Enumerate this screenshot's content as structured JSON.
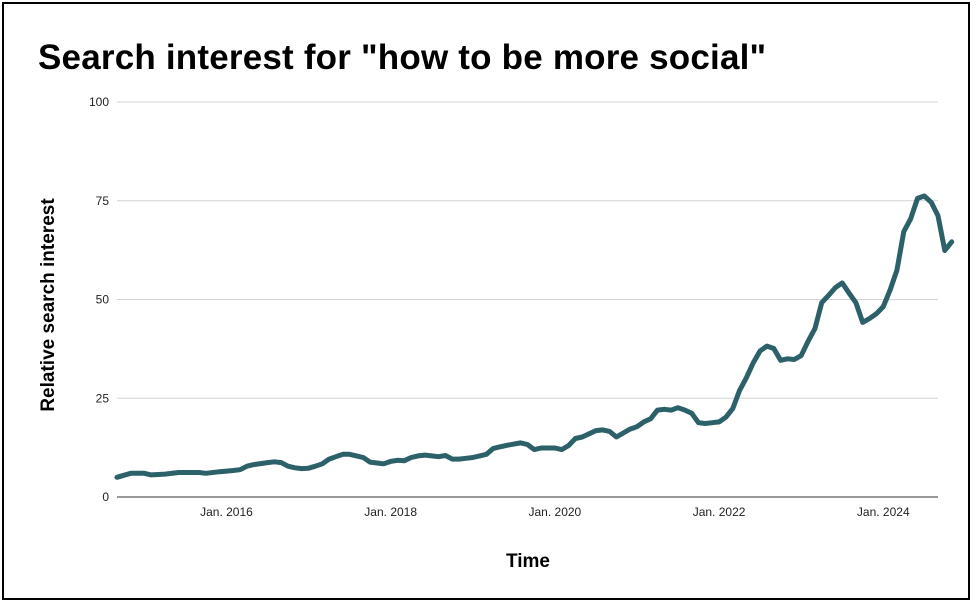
{
  "chart_data": {
    "type": "line",
    "title": "Search interest for \"how to be more social\"",
    "xlabel": "Time",
    "ylabel": "Relative search interest",
    "ylim": [
      0,
      100
    ],
    "yticks": [
      0,
      25,
      50,
      75,
      100
    ],
    "ytick_labels": [
      "0",
      "25",
      "50",
      "75",
      "100"
    ],
    "xlim": [
      "2014-09",
      "2024-09"
    ],
    "xticks": [
      {
        "date": "2016-01",
        "label": "Jan. 2016"
      },
      {
        "date": "2018-01",
        "label": "Jan. 2018"
      },
      {
        "date": "2020-01",
        "label": "Jan. 2020"
      },
      {
        "date": "2022-01",
        "label": "Jan. 2022"
      },
      {
        "date": "2024-01",
        "label": "Jan. 2024"
      }
    ],
    "grid": true,
    "line_color": "#2c6169",
    "grid_color": "#d3d3d3",
    "series": [
      {
        "points": [
          [
            "2014-09",
            5.0
          ],
          [
            "2014-10",
            5.5
          ],
          [
            "2014-11",
            6.0
          ],
          [
            "2015-01",
            6.0
          ],
          [
            "2015-02",
            5.6
          ],
          [
            "2015-04",
            5.8
          ],
          [
            "2015-06",
            6.2
          ],
          [
            "2015-09",
            6.2
          ],
          [
            "2015-10",
            6.0
          ],
          [
            "2015-12",
            6.4
          ],
          [
            "2016-02",
            6.7
          ],
          [
            "2016-03",
            6.9
          ],
          [
            "2016-04",
            7.8
          ],
          [
            "2016-05",
            8.2
          ],
          [
            "2016-07",
            8.7
          ],
          [
            "2016-08",
            8.9
          ],
          [
            "2016-09",
            8.7
          ],
          [
            "2016-10",
            7.8
          ],
          [
            "2016-11",
            7.4
          ],
          [
            "2016-12",
            7.2
          ],
          [
            "2017-01",
            7.3
          ],
          [
            "2017-02",
            7.8
          ],
          [
            "2017-03",
            8.4
          ],
          [
            "2017-04",
            9.6
          ],
          [
            "2017-05",
            10.2
          ],
          [
            "2017-06",
            10.8
          ],
          [
            "2017-07",
            10.8
          ],
          [
            "2017-08",
            10.4
          ],
          [
            "2017-09",
            10.0
          ],
          [
            "2017-10",
            8.8
          ],
          [
            "2017-11",
            8.6
          ],
          [
            "2017-12",
            8.4
          ],
          [
            "2018-01",
            9.0
          ],
          [
            "2018-02",
            9.3
          ],
          [
            "2018-03",
            9.2
          ],
          [
            "2018-04",
            10.0
          ],
          [
            "2018-05",
            10.4
          ],
          [
            "2018-06",
            10.6
          ],
          [
            "2018-07",
            10.4
          ],
          [
            "2018-08",
            10.2
          ],
          [
            "2018-09",
            10.5
          ],
          [
            "2018-10",
            9.6
          ],
          [
            "2018-11",
            9.6
          ],
          [
            "2018-12",
            9.8
          ],
          [
            "2019-01",
            10.0
          ],
          [
            "2019-02",
            10.4
          ],
          [
            "2019-03",
            10.8
          ],
          [
            "2019-04",
            12.3
          ],
          [
            "2019-05",
            12.7
          ],
          [
            "2019-06",
            13.1
          ],
          [
            "2019-07",
            13.4
          ],
          [
            "2019-08",
            13.7
          ],
          [
            "2019-09",
            13.3
          ],
          [
            "2019-10",
            12.0
          ],
          [
            "2019-11",
            12.4
          ],
          [
            "2019-12",
            12.4
          ],
          [
            "2020-01",
            12.4
          ],
          [
            "2020-02",
            12.0
          ],
          [
            "2020-03",
            13.0
          ],
          [
            "2020-04",
            14.8
          ],
          [
            "2020-05",
            15.2
          ],
          [
            "2020-06",
            16.0
          ],
          [
            "2020-07",
            16.8
          ],
          [
            "2020-08",
            17.0
          ],
          [
            "2020-09",
            16.6
          ],
          [
            "2020-10",
            15.2
          ],
          [
            "2020-11",
            16.2
          ],
          [
            "2020-12",
            17.2
          ],
          [
            "2021-01",
            17.8
          ],
          [
            "2021-02",
            19.0
          ],
          [
            "2021-03",
            19.8
          ],
          [
            "2021-04",
            22.0
          ],
          [
            "2021-05",
            22.2
          ],
          [
            "2021-06",
            22.0
          ],
          [
            "2021-07",
            22.6
          ],
          [
            "2021-08",
            22.0
          ],
          [
            "2021-09",
            21.2
          ],
          [
            "2021-10",
            18.8
          ],
          [
            "2021-11",
            18.6
          ],
          [
            "2021-12",
            18.8
          ],
          [
            "2022-01",
            19.0
          ],
          [
            "2022-02",
            20.2
          ],
          [
            "2022-03",
            22.4
          ],
          [
            "2022-04",
            27.0
          ],
          [
            "2022-05",
            30.2
          ],
          [
            "2022-06",
            34.0
          ],
          [
            "2022-07",
            37.0
          ],
          [
            "2022-08",
            38.2
          ],
          [
            "2022-09",
            37.6
          ],
          [
            "2022-10",
            34.6
          ],
          [
            "2022-11",
            35.0
          ],
          [
            "2022-12",
            34.8
          ],
          [
            "2023-01",
            35.8
          ],
          [
            "2023-02",
            39.4
          ],
          [
            "2023-03",
            42.6
          ],
          [
            "2023-04",
            49.2
          ],
          [
            "2023-05",
            51.0
          ],
          [
            "2023-06",
            53.0
          ],
          [
            "2023-07",
            54.2
          ],
          [
            "2023-08",
            51.6
          ],
          [
            "2023-09",
            49.2
          ],
          [
            "2023-10",
            44.2
          ],
          [
            "2023-11",
            45.2
          ],
          [
            "2023-12",
            46.4
          ],
          [
            "2024-01",
            48.2
          ],
          [
            "2024-02",
            52.4
          ],
          [
            "2024-03",
            57.4
          ],
          [
            "2024-04",
            67.2
          ],
          [
            "2024-05",
            70.4
          ],
          [
            "2024-06",
            75.6
          ],
          [
            "2024-07",
            76.2
          ],
          [
            "2024-08",
            74.6
          ],
          [
            "2024-09",
            71.2
          ],
          [
            "2024-10",
            62.4
          ],
          [
            "2024-11",
            64.6
          ]
        ]
      }
    ]
  }
}
